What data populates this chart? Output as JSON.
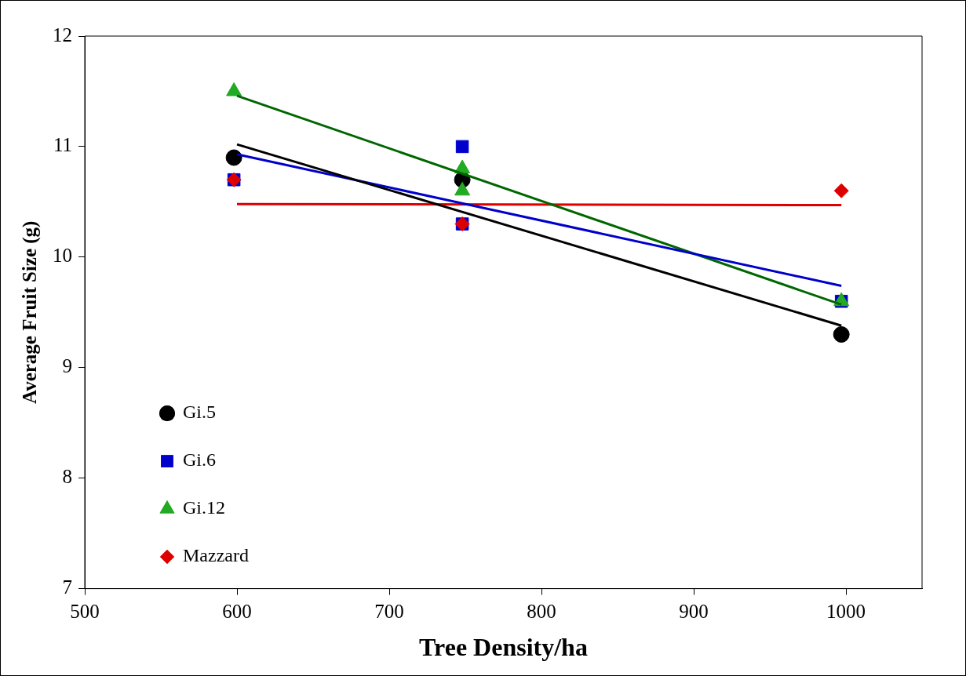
{
  "chart_data": {
    "type": "scatter",
    "xlabel": "Tree Density/ha",
    "ylabel": "Average Fruit Size (g)",
    "xlim": [
      500,
      1050
    ],
    "xticks": [
      500,
      600,
      700,
      800,
      900,
      1000
    ],
    "ylim": [
      7,
      12
    ],
    "yticks": [
      7,
      8,
      9,
      10,
      11,
      12
    ],
    "grid": false,
    "legend": "bottom left",
    "series": [
      {
        "name": "Gi.5",
        "color": "#000000",
        "marker": "circle",
        "x": [
          598,
          748,
          997
        ],
        "values": [
          10.9,
          10.7,
          9.3
        ]
      },
      {
        "name": "Gi.6",
        "color": "#0000cc",
        "marker": "square",
        "x": [
          598,
          748,
          748,
          997
        ],
        "values": [
          10.7,
          11.0,
          10.3,
          9.6
        ]
      },
      {
        "name": "Gi.12",
        "color": "#22aa22",
        "marker": "triangle",
        "x": [
          598,
          748,
          748,
          997
        ],
        "values": [
          11.5,
          10.8,
          10.6,
          9.6
        ]
      },
      {
        "name": "Mazzard",
        "color": "#dd0000",
        "marker": "diamond",
        "x": [
          598,
          748,
          997
        ],
        "values": [
          10.7,
          10.3,
          10.6
        ]
      },
      {
        "type": "line",
        "color": "#000000",
        "x": [
          600,
          997
        ],
        "values": [
          11.02,
          9.38
        ]
      },
      {
        "type": "line",
        "color": "#0000cc",
        "x": [
          600,
          997
        ],
        "values": [
          10.93,
          9.74
        ]
      },
      {
        "type": "line",
        "color": "#006600",
        "x": [
          600,
          997
        ],
        "values": [
          11.46,
          9.57
        ]
      },
      {
        "type": "line",
        "color": "#dd0000",
        "x": [
          600,
          997
        ],
        "values": [
          10.48,
          10.47
        ]
      }
    ]
  }
}
